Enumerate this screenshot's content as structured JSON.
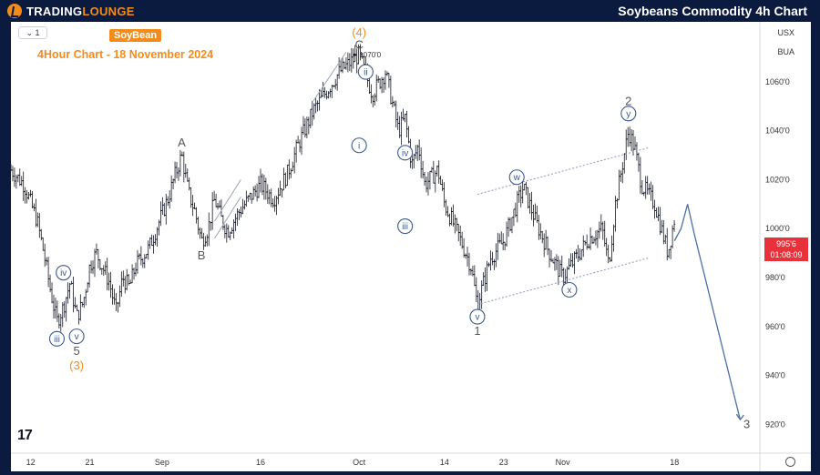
{
  "header": {
    "brand": "TRADINGLOUNGE",
    "brand_prefix": "TRADING",
    "brand_accent": "LOUNGE",
    "title": "Soybeans Commodity 4h Chart"
  },
  "chart_header": {
    "interval": "1",
    "symbol_badge": "SoyBean",
    "subtitle": "4Hour Chart - 18 November  2024",
    "tag_currency": "USX",
    "tag_ind": "BUA"
  },
  "price_tag": {
    "price": "995'6",
    "countdown": "01:08:09"
  },
  "colors": {
    "accent": "#f28c1c",
    "navy": "#0b1b3f",
    "candle": "#131722",
    "wave": "#3c5a8a",
    "forecast": "#4a6fa5",
    "price_tag": "#e8313b"
  },
  "chart_data": {
    "type": "candlestick",
    "title": "",
    "ylim": [
      912,
      1080
    ],
    "y_ticks": [
      "1060'0",
      "1040'0",
      "1020'0",
      "1000'0",
      "980'0",
      "960'0",
      "940'0",
      "920'0"
    ],
    "y_tick_values": [
      1060,
      1040,
      1020,
      1000,
      980,
      960,
      940,
      920
    ],
    "x_ticks": [
      "12",
      "21",
      "Sep",
      "16",
      "Oct",
      "14",
      "23",
      "Nov",
      "18"
    ],
    "x_tick_dates": [
      "2024-08-12",
      "2024-08-21",
      "2024-09-01",
      "2024-09-16",
      "2024-10-01",
      "2024-10-14",
      "2024-10-23",
      "2024-11-01",
      "2024-11-18"
    ],
    "xlim": [
      "2024-08-09",
      "2024-12-01"
    ],
    "price_path": [
      [
        "2024-08-09",
        1024
      ],
      [
        "2024-08-11",
        1018
      ],
      [
        "2024-08-13",
        1003
      ],
      [
        "2024-08-14",
        990
      ],
      [
        "2024-08-15",
        975
      ],
      [
        "2024-08-16",
        962
      ],
      [
        "2024-08-17",
        968
      ],
      [
        "2024-08-18",
        978
      ],
      [
        "2024-08-19",
        964
      ],
      [
        "2024-08-20",
        970
      ],
      [
        "2024-08-21",
        985
      ],
      [
        "2024-08-22",
        990
      ],
      [
        "2024-08-24",
        978
      ],
      [
        "2024-08-25",
        966
      ],
      [
        "2024-08-26",
        980
      ],
      [
        "2024-08-27",
        976
      ],
      [
        "2024-08-28",
        985
      ],
      [
        "2024-08-30",
        992
      ],
      [
        "2024-09-01",
        1006
      ],
      [
        "2024-09-02",
        1013
      ],
      [
        "2024-09-03",
        1022
      ],
      [
        "2024-09-04",
        1030
      ],
      [
        "2024-09-05",
        1015
      ],
      [
        "2024-09-06",
        1007
      ],
      [
        "2024-09-07",
        995
      ],
      [
        "2024-09-08",
        1000
      ],
      [
        "2024-09-09",
        1012
      ],
      [
        "2024-09-10",
        1004
      ],
      [
        "2024-09-11",
        999
      ],
      [
        "2024-09-13",
        1008
      ],
      [
        "2024-09-16",
        1018
      ],
      [
        "2024-09-18",
        1012
      ],
      [
        "2024-09-20",
        1022
      ],
      [
        "2024-09-22",
        1036
      ],
      [
        "2024-09-24",
        1048
      ],
      [
        "2024-09-26",
        1056
      ],
      [
        "2024-09-28",
        1064
      ],
      [
        "2024-10-01",
        1071
      ],
      [
        "2024-10-03",
        1055
      ],
      [
        "2024-10-05",
        1064
      ],
      [
        "2024-10-07",
        1040
      ],
      [
        "2024-10-08",
        1045
      ],
      [
        "2024-10-09",
        1026
      ],
      [
        "2024-10-10",
        1034
      ],
      [
        "2024-10-11",
        1018
      ],
      [
        "2024-10-13",
        1024
      ],
      [
        "2024-10-14",
        1010
      ],
      [
        "2024-10-16",
        998
      ],
      [
        "2024-10-18",
        985
      ],
      [
        "2024-10-19",
        969
      ],
      [
        "2024-10-21",
        988
      ],
      [
        "2024-10-23",
        995
      ],
      [
        "2024-10-25",
        1010
      ],
      [
        "2024-10-26",
        1017
      ],
      [
        "2024-10-28",
        1002
      ],
      [
        "2024-10-30",
        990
      ],
      [
        "2024-11-01",
        980
      ],
      [
        "2024-11-03",
        988
      ],
      [
        "2024-11-05",
        996
      ],
      [
        "2024-11-07",
        1000
      ],
      [
        "2024-11-08",
        985
      ],
      [
        "2024-11-09",
        1010
      ],
      [
        "2024-11-11",
        1040
      ],
      [
        "2024-11-12",
        1032
      ],
      [
        "2024-11-13",
        1018
      ],
      [
        "2024-11-15",
        1010
      ],
      [
        "2024-11-17",
        990
      ],
      [
        "2024-11-18",
        1004
      ]
    ],
    "forecast_path": [
      [
        "2024-11-18",
        995
      ],
      [
        "2024-11-19",
        1000
      ],
      [
        "2024-11-20",
        1010
      ],
      [
        "2024-11-21",
        998
      ],
      [
        "2024-11-28",
        922
      ]
    ],
    "wave_labels": [
      {
        "text": "(4)",
        "date": "2024-10-01",
        "price": 1080,
        "style": "orange"
      },
      {
        "text": "C",
        "date": "2024-10-01",
        "price": 1075,
        "style": "plain"
      },
      {
        "text": "1070'0",
        "date": "2024-10-02",
        "price": 1071,
        "style": "small"
      },
      {
        "text": "ii",
        "date": "2024-10-02",
        "price": 1064,
        "style": "circle"
      },
      {
        "text": "i",
        "date": "2024-10-01",
        "price": 1034,
        "style": "circle"
      },
      {
        "text": "iv",
        "date": "2024-10-08",
        "price": 1031,
        "style": "circle"
      },
      {
        "text": "iii",
        "date": "2024-10-08",
        "price": 1001,
        "style": "circle"
      },
      {
        "text": "A",
        "date": "2024-09-04",
        "price": 1035,
        "style": "plain"
      },
      {
        "text": "B",
        "date": "2024-09-07",
        "price": 989,
        "style": "plain"
      },
      {
        "text": "iv",
        "date": "2024-08-17",
        "price": 982,
        "style": "circle"
      },
      {
        "text": "iii",
        "date": "2024-08-16",
        "price": 955,
        "style": "circle"
      },
      {
        "text": "v",
        "date": "2024-08-19",
        "price": 956,
        "style": "circle"
      },
      {
        "text": "5",
        "date": "2024-08-19",
        "price": 950,
        "style": "plain"
      },
      {
        "text": "(3)",
        "date": "2024-08-19",
        "price": 944,
        "style": "orange"
      },
      {
        "text": "w",
        "date": "2024-10-25",
        "price": 1021,
        "style": "circle"
      },
      {
        "text": "x",
        "date": "2024-11-02",
        "price": 975,
        "style": "circle"
      },
      {
        "text": "v",
        "date": "2024-10-19",
        "price": 964,
        "style": "circle"
      },
      {
        "text": "1",
        "date": "2024-10-19",
        "price": 958,
        "style": "plain"
      },
      {
        "text": "2",
        "date": "2024-11-11",
        "price": 1052,
        "style": "plain"
      },
      {
        "text": "y",
        "date": "2024-11-11",
        "price": 1047,
        "style": "circle"
      },
      {
        "text": "3",
        "date": "2024-11-29",
        "price": 920,
        "style": "plain"
      }
    ],
    "channel_lines": [
      [
        [
          "2024-10-19",
          1014
        ],
        [
          "2024-11-14",
          1033
        ]
      ],
      [
        [
          "2024-10-19",
          969
        ],
        [
          "2024-11-14",
          988
        ]
      ]
    ],
    "pattern_lines": [
      [
        [
          "2024-09-24",
          1052
        ],
        [
          "2024-09-29",
          1072
        ]
      ],
      [
        [
          "2024-09-09",
          1003
        ],
        [
          "2024-09-13",
          1020
        ]
      ],
      [
        [
          "2024-09-09",
          996
        ],
        [
          "2024-09-13",
          1013
        ]
      ]
    ]
  }
}
